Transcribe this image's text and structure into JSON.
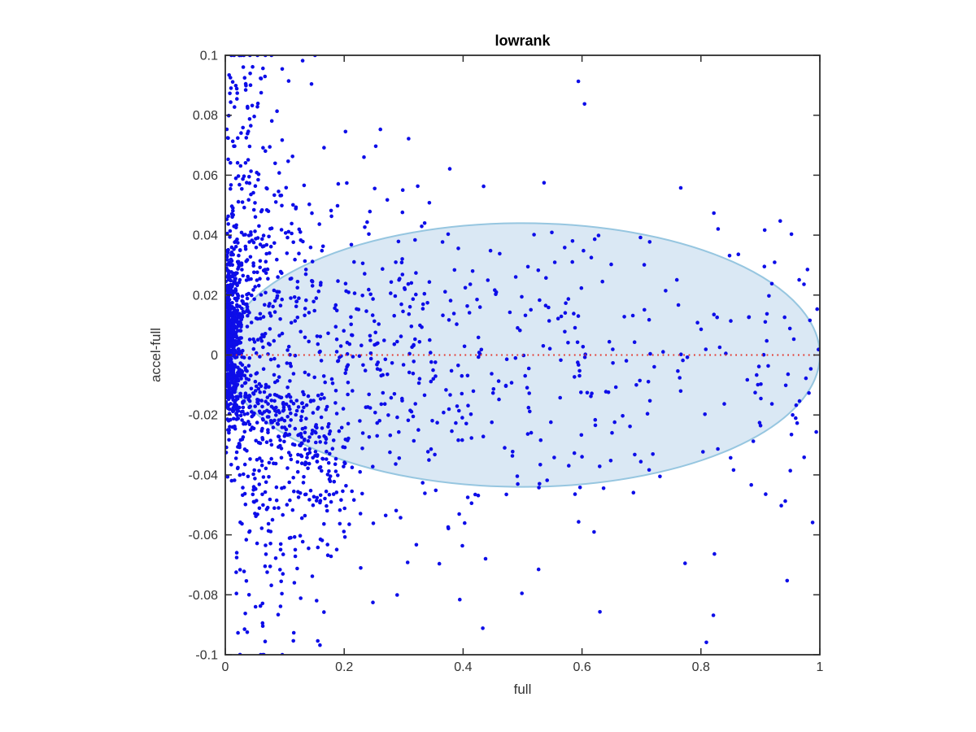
{
  "chart_data": {
    "type": "scatter",
    "title": "lowrank",
    "xlabel": "full",
    "ylabel": "accel-full",
    "xlim": [
      0,
      1
    ],
    "ylim": [
      -0.1,
      0.1
    ],
    "grid": false,
    "legend": null,
    "x_ticks": {
      "values": [
        0,
        0.2,
        0.4,
        0.6,
        0.8,
        1
      ],
      "labels": [
        "0",
        "0.2",
        "0.4",
        "0.6",
        "0.8",
        "1"
      ]
    },
    "y_ticks": {
      "values": [
        0.1,
        0.08,
        0.06,
        0.04,
        0.02,
        0,
        -0.02,
        -0.04,
        -0.06,
        -0.08,
        -0.1
      ],
      "labels": [
        "0.1",
        "0.08",
        "0.06",
        "0.04",
        "0.02",
        "0",
        "-0.02",
        "-0.04",
        "-0.06",
        "-0.08",
        "-0.1"
      ]
    },
    "colors": {
      "marker": "#0d0de8",
      "ellipse_fill": "#dae8f4",
      "ellipse_stroke": "#96c6e0",
      "refline": "#e3362b",
      "axis": "#2e2e2e",
      "tick_label": "#333333",
      "title": "#000000"
    },
    "marker": {
      "shape": "dot",
      "radius": 2.3
    },
    "ellipse": {
      "cx": 0.5,
      "cy": 0,
      "rx": 0.5,
      "ry": 0.044,
      "stroke_width": 2
    },
    "refline": {
      "y": 0,
      "style": "dotted"
    },
    "scatter_generator": {
      "note": "dense cloud of ~1900 blue points, heavily concentrated near x=0, spread decaying toward x=1",
      "seed": 42,
      "components": [
        {
          "name": "core-spike",
          "n": 520,
          "x": {
            "type": "absnorm",
            "sigma": 0.012,
            "offset": 0.001
          },
          "y": {
            "type": "norm",
            "mu": 0.005,
            "sigma": 0.015,
            "slope": 0
          }
        },
        {
          "name": "left-fan-upper",
          "n": 250,
          "x": {
            "type": "absnorm",
            "sigma": 0.055,
            "offset": 0.002
          },
          "y": {
            "type": "signed-absnorm",
            "sign": 1,
            "offset": 0.012,
            "sigma": 0.045
          }
        },
        {
          "name": "left-fan-lower",
          "n": 230,
          "x": {
            "type": "absnorm",
            "sigma": 0.085,
            "offset": 0.018
          },
          "y": {
            "type": "signed-absnorm",
            "sign": -1,
            "offset": 0.012,
            "sigma": 0.04
          }
        },
        {
          "name": "lower-arm",
          "n": 170,
          "x": {
            "type": "pow-uniform",
            "min": 0.015,
            "range": 0.19,
            "pow": 1.4
          },
          "y": {
            "type": "norm",
            "mu": -0.004,
            "sigma": 0.009,
            "slope": -0.2
          }
        },
        {
          "name": "mid-cloud",
          "n": 400,
          "x": {
            "type": "absnorm",
            "sigma": 0.26,
            "offset": 0.025
          },
          "y": {
            "type": "norm",
            "mu": -0.002,
            "sigma": 0.03,
            "slope": 0
          }
        },
        {
          "name": "wide-band",
          "n": 280,
          "x": {
            "type": "uniform",
            "min": 0.05,
            "max": 1.0
          },
          "y": {
            "type": "norm",
            "mu": 0,
            "sigma": 0.026,
            "slope": 0
          }
        },
        {
          "name": "sparse-outliers",
          "n": 55,
          "x": {
            "type": "uniform",
            "min": 0.03,
            "max": 0.97
          },
          "y": {
            "type": "uniform",
            "min": -0.1,
            "max": 0.1
          }
        }
      ]
    }
  }
}
